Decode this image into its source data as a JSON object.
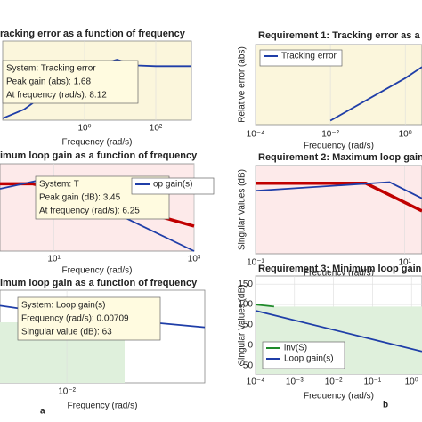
{
  "chart_data": [
    {
      "type": "line",
      "title": "racking error as a function of frequency",
      "xlabel": "Frequency (rad/s)",
      "xlog": true,
      "xlim": [
        0.005,
        1000
      ],
      "ylim": [
        0,
        2.2
      ],
      "xticks": [
        {
          "value": 1,
          "label": "10⁰"
        },
        {
          "value": 100,
          "label": "10²"
        }
      ],
      "series": [
        {
          "color": "#1f3ea8",
          "x": [
            0.005,
            0.02,
            0.1,
            0.5,
            2,
            8.12,
            30,
            100,
            1000
          ],
          "values": [
            0.05,
            0.3,
            0.8,
            1.2,
            1.5,
            1.68,
            1.52,
            1.5,
            1.5
          ]
        }
      ],
      "annotations": [
        "System: Tracking error",
        "Peak gain (abs): 1.68",
        "At frequency (rad/s): 8.12"
      ]
    },
    {
      "type": "line",
      "title": "imum loop gain as a function of frequency",
      "xlabel": "Frequency (rad/s)",
      "xlog": true,
      "xlim": [
        1.7,
        1000
      ],
      "ylim": [
        -25,
        10
      ],
      "xticks": [
        {
          "value": 10,
          "label": "10¹"
        },
        {
          "value": 1000,
          "label": "10³"
        }
      ],
      "series": [
        {
          "color": "#c00000",
          "x": [
            1.7,
            5,
            30,
            1000
          ],
          "values": [
            2,
            2,
            -3,
            -15
          ]
        },
        {
          "color": "#1f3ea8",
          "x": [
            1.7,
            6.25,
            20,
            1000
          ],
          "values": [
            0,
            3.45,
            -2,
            -25
          ]
        }
      ],
      "legend": [
        "op gain(s)"
      ],
      "annotations": [
        "System: T",
        "Peak gain (dB): 3.45",
        "At frequency (rad/s): 6.25"
      ]
    },
    {
      "type": "line",
      "title": "imum loop gain as a function of frequency",
      "xlabel": "Frequency (rad/s)",
      "xlog": true,
      "xlim": [
        0.00237,
        0.195
      ],
      "ylim": [
        -50,
        100
      ],
      "xticks": [
        {
          "value": 0.01,
          "label": "10⁻²"
        }
      ],
      "series": [
        {
          "color": "#1f3ea8",
          "x": [
            0.00237,
            0.00709,
            0.195
          ],
          "values": [
            75,
            63,
            40
          ]
        }
      ],
      "annotations": [
        "System: Loop gain(s)",
        "Frequency (rad/s): 0.00709",
        "Singular value (dB): 63"
      ],
      "label": "a"
    },
    {
      "type": "line",
      "title": "Requirement 1: Tracking error as a f",
      "xlabel": "Frequency (rad/s)",
      "ylabel": "Relative error (abs)",
      "xlog": true,
      "xlim": [
        0.0001,
        2.8
      ],
      "ylim": [
        0,
        1
      ],
      "xticks": [
        {
          "value": 0.0001,
          "label": "10⁻⁴"
        },
        {
          "value": 0.01,
          "label": "10⁻²"
        },
        {
          "value": 1,
          "label": "10⁰"
        }
      ],
      "series": [
        {
          "name": "Tracking error",
          "color": "#1f3ea8",
          "x": [
            0.01,
            1,
            2.8
          ],
          "values": [
            0.05,
            0.58,
            0.72
          ]
        }
      ]
    },
    {
      "type": "line",
      "title": "Requirement 2: Maximum loop gain as",
      "xlabel": "Frequency (rad/s)",
      "ylabel": "Singular Values (dB)",
      "xlog": true,
      "xlim": [
        0.1,
        17
      ],
      "ylim": [
        -25,
        10
      ],
      "xticks": [
        {
          "value": 0.1,
          "label": "10⁻¹"
        },
        {
          "value": 10,
          "label": "10¹"
        }
      ],
      "series": [
        {
          "color": "#c00000",
          "x": [
            0.1,
            3,
            17
          ],
          "values": [
            3,
            3,
            -8
          ]
        },
        {
          "color": "#1f3ea8",
          "x": [
            0.1,
            6.25,
            17
          ],
          "values": [
            0,
            3.45,
            -3
          ]
        }
      ]
    },
    {
      "type": "line",
      "title": "Requirement 3: Minimum loop gain as a",
      "xlabel": "Frequency (rad/s)",
      "ylabel": "Singular Values (dB)",
      "xlog": true,
      "xlim": [
        0.0001,
        1.86
      ],
      "ylim": [
        -70,
        170
      ],
      "xticks": [
        {
          "value": 0.0001,
          "label": "10⁻⁴"
        },
        {
          "value": 0.001,
          "label": "10⁻³"
        },
        {
          "value": 0.01,
          "label": "10⁻²"
        },
        {
          "value": 0.1,
          "label": "10⁻¹"
        },
        {
          "value": 1,
          "label": "10⁰"
        }
      ],
      "yticks": [
        150,
        100,
        50,
        0,
        -50
      ],
      "series": [
        {
          "name": "inv(S)",
          "color": "#1e8a2a",
          "x": [
            0.0001,
            0.0003
          ],
          "values": [
            100,
            95
          ]
        },
        {
          "name": "Loop gain(s)",
          "color": "#1f3ea8",
          "x": [
            0.0001,
            1.86
          ],
          "values": [
            85,
            -15
          ]
        }
      ],
      "label": "b"
    }
  ]
}
